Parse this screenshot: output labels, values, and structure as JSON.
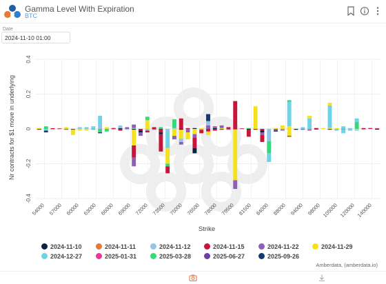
{
  "header": {
    "title": "Gamma Level With Expiration",
    "subtitle": "BTC",
    "icons": [
      "bookmark-icon",
      "info-icon",
      "more-icon"
    ]
  },
  "date_filter": {
    "label": "Date",
    "value": "2024-11-10 01:00"
  },
  "credit": "Amberdata, (amberdata.io)",
  "footer": {
    "icons": [
      "camera-icon",
      "download-icon"
    ]
  },
  "colors": {
    "2024-11-10": "#0b2340",
    "2024-11-11": "#e8773a",
    "2024-11-12": "#93c5e6",
    "2024-11-15": "#c8153c",
    "2024-11-22": "#8e5fb5",
    "2024-11-29": "#f6e21c",
    "2024-12-27": "#6ed3e6",
    "2025-01-31": "#e43a9a",
    "2025-03-28": "#35d97a",
    "2025-06-27": "#6a3fa0",
    "2025-09-26": "#163a6b"
  },
  "chart_data": {
    "type": "bar",
    "stacked": true,
    "xlabel": "Strike",
    "ylabel": "Nr contracts for $1 move in underlying",
    "ylim": [
      -0.4,
      0.4
    ],
    "yticks": [
      0.4,
      0.2,
      0,
      -0.2,
      -0.4
    ],
    "xtick_labels": [
      "54000",
      "57000",
      "60000",
      "63000",
      "66000",
      "69000",
      "72000",
      "73500",
      "75000",
      "76500",
      "78000",
      "79500",
      "81500",
      "84000",
      "88000",
      "94000",
      "98000",
      "105000",
      "120000",
      "140000"
    ],
    "grid": true,
    "legend_position": "bottom",
    "series": [
      {
        "name": "2024-11-10"
      },
      {
        "name": "2024-11-11"
      },
      {
        "name": "2024-11-12"
      },
      {
        "name": "2024-11-15"
      },
      {
        "name": "2024-11-22"
      },
      {
        "name": "2024-11-29"
      },
      {
        "name": "2024-12-27"
      },
      {
        "name": "2025-01-31"
      },
      {
        "name": "2025-03-28"
      },
      {
        "name": "2025-06-27"
      },
      {
        "name": "2025-09-26"
      }
    ],
    "bars": [
      {
        "strike": "54000",
        "segs": [
          [
            "2024-11-29",
            0.005
          ],
          [
            "2024-11-15",
            -0.005
          ]
        ]
      },
      {
        "strike": "56000",
        "segs": [
          [
            "2025-03-28",
            0.015
          ],
          [
            "2024-12-27",
            -0.01
          ],
          [
            "2025-09-26",
            -0.01
          ]
        ]
      },
      {
        "strike": "57000",
        "segs": [
          [
            "2024-11-15",
            0.004
          ],
          [
            "2024-12-27",
            -0.005
          ]
        ]
      },
      {
        "strike": "59000",
        "segs": [
          [
            "2024-11-15",
            0.003
          ]
        ]
      },
      {
        "strike": "60000",
        "segs": [
          [
            "2024-11-29",
            0.01
          ],
          [
            "2024-11-22",
            -0.005
          ]
        ]
      },
      {
        "strike": "61000",
        "segs": [
          [
            "2024-11-15",
            -0.005
          ],
          [
            "2024-11-29",
            -0.03
          ]
        ]
      },
      {
        "strike": "63000",
        "segs": [
          [
            "2024-11-12",
            0.01
          ],
          [
            "2024-11-29",
            -0.01
          ]
        ]
      },
      {
        "strike": "64000",
        "segs": [
          [
            "2024-12-27",
            0.01
          ],
          [
            "2024-11-29",
            -0.01
          ]
        ]
      },
      {
        "strike": "65000",
        "segs": [
          [
            "2024-12-27",
            0.015
          ],
          [
            "2025-03-28",
            -0.005
          ]
        ]
      },
      {
        "strike": "66000",
        "segs": [
          [
            "2024-11-12",
            0.02
          ],
          [
            "2024-12-27",
            0.055
          ],
          [
            "2025-03-28",
            -0.02
          ],
          [
            "2025-09-26",
            -0.005
          ]
        ]
      },
      {
        "strike": "67000",
        "segs": [
          [
            "2024-11-29",
            0.01
          ],
          [
            "2025-03-28",
            -0.015
          ]
        ]
      },
      {
        "strike": "68000",
        "segs": [
          [
            "2024-11-15",
            0.005
          ],
          [
            "2024-11-12",
            -0.005
          ]
        ]
      },
      {
        "strike": "69000",
        "segs": [
          [
            "2025-09-26",
            0.005
          ],
          [
            "2024-11-12",
            0.015
          ],
          [
            "2024-11-15",
            -0.01
          ]
        ]
      },
      {
        "strike": "70000",
        "segs": [
          [
            "2024-11-22",
            0.01
          ],
          [
            "2024-12-27",
            -0.005
          ]
        ]
      },
      {
        "strike": "71000",
        "segs": [
          [
            "2024-11-12",
            0.005
          ],
          [
            "2024-11-22",
            0.02
          ],
          [
            "2024-11-10",
            -0.005
          ],
          [
            "2024-11-29",
            -0.09
          ],
          [
            "2024-11-15",
            -0.07
          ],
          [
            "2024-11-22",
            -0.05
          ]
        ]
      },
      {
        "strike": "72000",
        "segs": [
          [
            "2024-11-15",
            -0.01
          ],
          [
            "2024-11-10",
            -0.01
          ],
          [
            "2024-11-22",
            -0.02
          ]
        ]
      },
      {
        "strike": "73000",
        "segs": [
          [
            "2024-11-29",
            0.05
          ],
          [
            "2025-03-28",
            0.02
          ],
          [
            "2024-11-12",
            -0.01
          ],
          [
            "2024-11-15",
            -0.01
          ]
        ]
      },
      {
        "strike": "73500",
        "segs": [
          [
            "2024-11-15",
            0.01
          ],
          [
            "2024-11-22",
            -0.005
          ]
        ]
      },
      {
        "strike": "74000",
        "segs": [
          [
            "2025-03-28",
            0.01
          ],
          [
            "2024-11-15",
            -0.02
          ],
          [
            "2024-11-10",
            -0.01
          ],
          [
            "2024-11-15",
            -0.1
          ]
        ]
      },
      {
        "strike": "75000",
        "segs": [
          [
            "2024-11-12",
            -0.02
          ],
          [
            "2024-12-27",
            -0.09
          ],
          [
            "2024-11-29",
            -0.09
          ],
          [
            "2025-03-28",
            -0.015
          ],
          [
            "2024-11-15",
            -0.04
          ]
        ]
      },
      {
        "strike": "75500",
        "segs": [
          [
            "2024-11-12",
            0.005
          ],
          [
            "2025-03-28",
            0.05
          ],
          [
            "2024-11-29",
            -0.04
          ],
          [
            "2024-11-22",
            -0.02
          ]
        ]
      },
      {
        "strike": "76000",
        "segs": [
          [
            "2024-11-15",
            0.06
          ],
          [
            "2024-11-10",
            -0.005
          ],
          [
            "2024-11-29",
            -0.05
          ],
          [
            "2024-11-12",
            -0.02
          ],
          [
            "2024-11-22",
            -0.015
          ]
        ]
      },
      {
        "strike": "76500",
        "segs": [
          [
            "2024-11-15",
            0.005
          ],
          [
            "2024-11-22",
            -0.02
          ],
          [
            "2024-11-29",
            -0.04
          ]
        ]
      },
      {
        "strike": "77000",
        "segs": [
          [
            "2024-11-10",
            0.005
          ],
          [
            "2024-11-29",
            -0.03
          ],
          [
            "2024-11-22",
            -0.02
          ],
          [
            "2024-11-15",
            -0.06
          ],
          [
            "2024-11-10",
            -0.03
          ]
        ]
      },
      {
        "strike": "77500",
        "segs": [
          [
            "2024-11-29",
            0.005
          ],
          [
            "2024-12-27",
            -0.005
          ],
          [
            "2024-11-15",
            -0.02
          ]
        ]
      },
      {
        "strike": "78000",
        "segs": [
          [
            "2024-11-22",
            0.02
          ],
          [
            "2024-11-12",
            0.025
          ],
          [
            "2025-09-26",
            0.04
          ],
          [
            "2024-11-15",
            -0.015
          ],
          [
            "2024-11-29",
            -0.02
          ]
        ]
      },
      {
        "strike": "78500",
        "segs": [
          [
            "2024-11-10",
            0.005
          ],
          [
            "2024-11-22",
            0.01
          ],
          [
            "2024-11-15",
            -0.01
          ]
        ]
      },
      {
        "strike": "79000",
        "segs": [
          [
            "2024-11-29",
            0.005
          ],
          [
            "2024-11-22",
            0.015
          ],
          [
            "2024-11-15",
            -0.005
          ]
        ]
      },
      {
        "strike": "79500",
        "segs": [
          [
            "2024-11-15",
            0.01
          ],
          [
            "2024-11-22",
            -0.005
          ]
        ]
      },
      {
        "strike": "80000",
        "segs": [
          [
            "2024-11-15",
            0.16
          ],
          [
            "2024-11-22",
            -0.005
          ],
          [
            "2024-11-29",
            -0.29
          ],
          [
            "2024-11-22",
            -0.05
          ]
        ]
      },
      {
        "strike": "81000",
        "segs": [
          [
            "2024-11-15",
            0.003
          ]
        ]
      },
      {
        "strike": "82000",
        "segs": [
          [
            "2025-03-28",
            0.005
          ],
          [
            "2024-11-10",
            -0.005
          ],
          [
            "2024-11-15",
            -0.04
          ]
        ]
      },
      {
        "strike": "82500",
        "segs": [
          [
            "2024-11-29",
            0.13
          ],
          [
            "2024-11-15",
            -0.005
          ]
        ]
      },
      {
        "strike": "84000",
        "segs": [
          [
            "2024-11-15",
            -0.01
          ],
          [
            "2024-11-10",
            -0.01
          ],
          [
            "2024-11-22",
            -0.015
          ],
          [
            "2024-11-15",
            -0.04
          ]
        ]
      },
      {
        "strike": "85000",
        "segs": [
          [
            "2024-11-12",
            -0.07
          ],
          [
            "2025-03-28",
            -0.07
          ],
          [
            "2024-12-27",
            -0.05
          ]
        ]
      },
      {
        "strike": "86000",
        "segs": [
          [
            "2024-11-29",
            0.005
          ],
          [
            "2024-11-22",
            -0.01
          ],
          [
            "2024-11-10",
            -0.005
          ]
        ]
      },
      {
        "strike": "87000",
        "segs": [
          [
            "2024-11-29",
            0.02
          ],
          [
            "2025-03-28",
            -0.005
          ],
          [
            "2024-11-22",
            -0.005
          ]
        ]
      },
      {
        "strike": "88000",
        "segs": [
          [
            "2024-11-29",
            0.015
          ],
          [
            "2024-12-27",
            0.14
          ],
          [
            "2025-03-28",
            0.01
          ],
          [
            "2024-11-29",
            -0.04
          ],
          [
            "2024-11-15",
            -0.005
          ]
        ]
      },
      {
        "strike": "90000",
        "segs": [
          [
            "2024-11-10",
            -0.005
          ]
        ]
      },
      {
        "strike": "92000",
        "segs": [
          [
            "2024-12-27",
            0.01
          ],
          [
            "2024-11-22",
            -0.005
          ]
        ]
      },
      {
        "strike": "94000",
        "segs": [
          [
            "2024-12-27",
            0.06
          ],
          [
            "2024-11-29",
            0.015
          ],
          [
            "2025-03-28",
            -0.005
          ],
          [
            "2025-01-31",
            -0.005
          ]
        ]
      },
      {
        "strike": "96000",
        "segs": [
          [
            "2024-11-15",
            0.005
          ],
          [
            "2024-11-15",
            -0.003
          ]
        ]
      },
      {
        "strike": "98000",
        "segs": [
          [
            "2024-11-29",
            0.005
          ]
        ]
      },
      {
        "strike": "100000",
        "segs": [
          [
            "2024-11-29",
            0.005
          ],
          [
            "2024-12-27",
            0.13
          ],
          [
            "2024-11-29",
            0.015
          ],
          [
            "2024-11-15",
            -0.005
          ]
        ]
      },
      {
        "strike": "105000",
        "segs": [
          [
            "2024-11-29",
            0.005
          ],
          [
            "2024-12-27",
            -0.01
          ]
        ]
      },
      {
        "strike": "110000",
        "segs": [
          [
            "2024-12-27",
            0.015
          ],
          [
            "2025-03-28",
            -0.005
          ],
          [
            "2024-12-27",
            -0.02
          ]
        ]
      },
      {
        "strike": "120000",
        "segs": [
          [
            "2024-11-12",
            0.005
          ],
          [
            "2024-12-27",
            -0.01
          ]
        ]
      },
      {
        "strike": "125000",
        "segs": [
          [
            "2025-03-28",
            0.04
          ],
          [
            "2024-12-27",
            0.02
          ],
          [
            "2024-11-29",
            -0.005
          ],
          [
            "2024-12-27",
            -0.005
          ]
        ]
      },
      {
        "strike": "130000",
        "segs": [
          [
            "2024-11-15",
            0.005
          ],
          [
            "2025-03-28",
            -0.005
          ]
        ]
      },
      {
        "strike": "140000",
        "segs": [
          [
            "2024-11-15",
            0.005
          ]
        ]
      },
      {
        "strike": "150000",
        "segs": [
          [
            "2024-11-15",
            0.003
          ],
          [
            "2024-11-10",
            -0.003
          ]
        ]
      }
    ]
  }
}
